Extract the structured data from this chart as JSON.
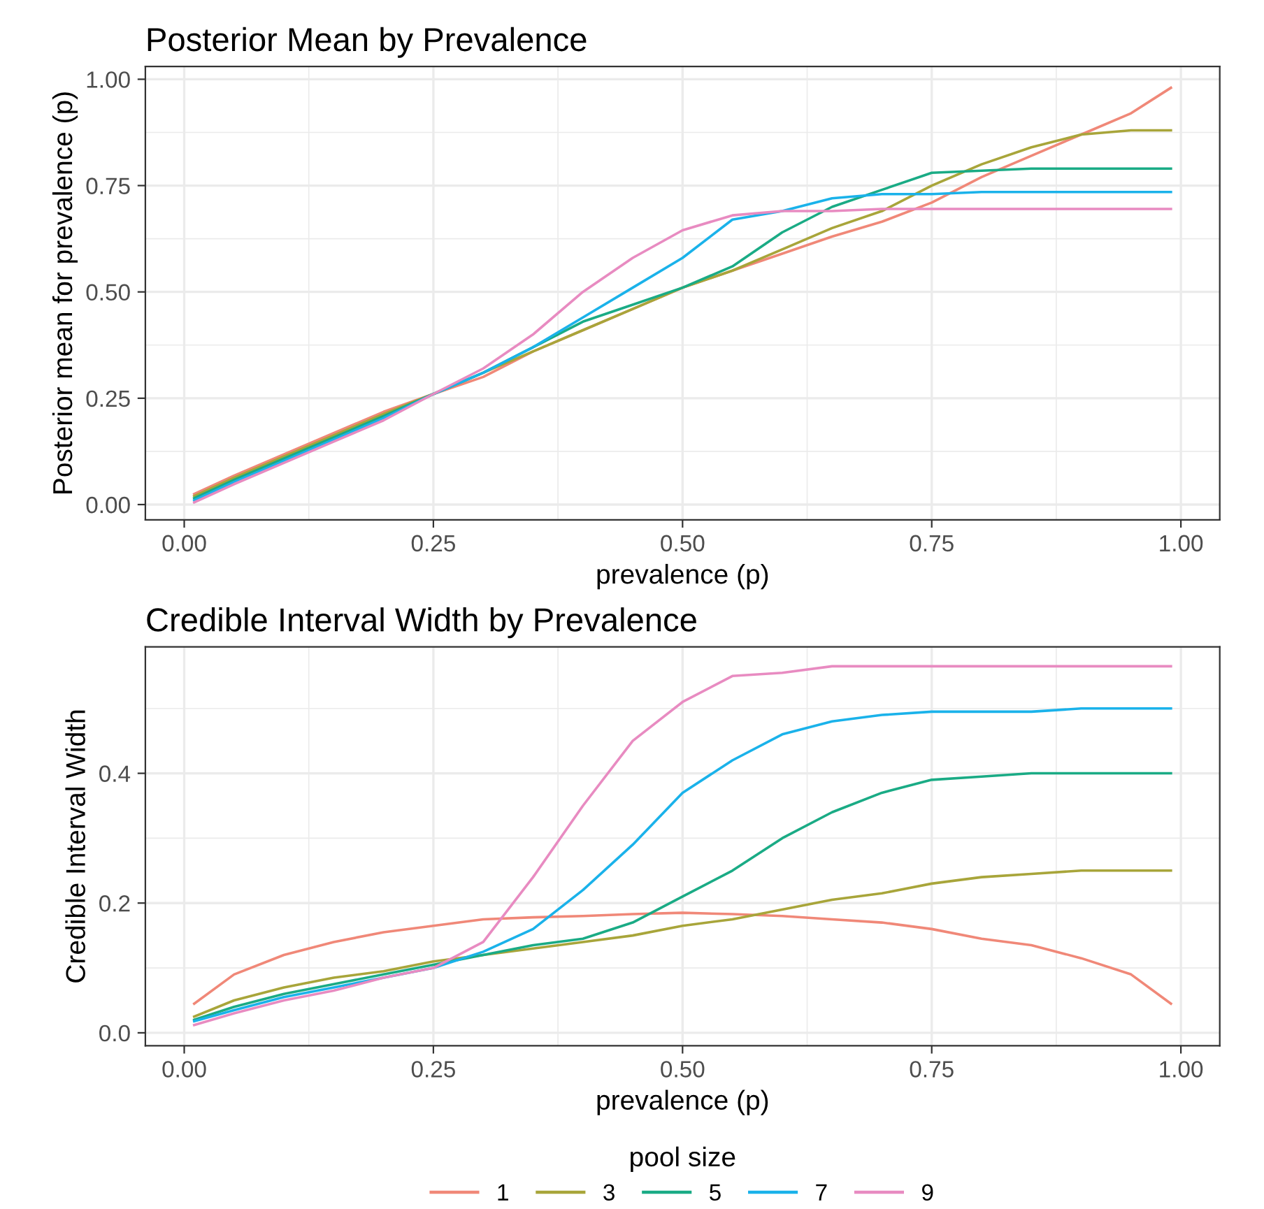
{
  "chart_data": [
    {
      "type": "line",
      "title": "Posterior Mean by Prevalence",
      "xlabel": "prevalence (p)",
      "ylabel": "Posterior mean for prevalence (p)",
      "x": [
        0.01,
        0.05,
        0.1,
        0.15,
        0.2,
        0.25,
        0.3,
        0.35,
        0.4,
        0.45,
        0.5,
        0.55,
        0.6,
        0.65,
        0.7,
        0.75,
        0.8,
        0.85,
        0.9,
        0.95,
        0.99
      ],
      "series": [
        {
          "color": "#F08878",
          "values": [
            0.025,
            0.068,
            0.118,
            0.168,
            0.218,
            0.26,
            0.3,
            0.36,
            0.41,
            0.46,
            0.51,
            0.55,
            0.59,
            0.63,
            0.665,
            0.71,
            0.77,
            0.82,
            0.87,
            0.92,
            0.98
          ]
        },
        {
          "color": "#A8A53A",
          "values": [
            0.02,
            0.063,
            0.113,
            0.163,
            0.213,
            0.26,
            0.31,
            0.36,
            0.41,
            0.46,
            0.51,
            0.55,
            0.6,
            0.65,
            0.69,
            0.75,
            0.8,
            0.84,
            0.87,
            0.88,
            0.88
          ]
        },
        {
          "color": "#1AAB85",
          "values": [
            0.015,
            0.058,
            0.108,
            0.158,
            0.208,
            0.26,
            0.31,
            0.37,
            0.43,
            0.47,
            0.51,
            0.56,
            0.64,
            0.7,
            0.74,
            0.78,
            0.785,
            0.79,
            0.79,
            0.79,
            0.79
          ]
        },
        {
          "color": "#1AB2EA",
          "values": [
            0.01,
            0.053,
            0.103,
            0.153,
            0.203,
            0.26,
            0.31,
            0.37,
            0.44,
            0.51,
            0.58,
            0.67,
            0.69,
            0.72,
            0.73,
            0.73,
            0.735,
            0.735,
            0.735,
            0.735,
            0.735
          ]
        },
        {
          "color": "#E88BC1",
          "values": [
            0.005,
            0.048,
            0.098,
            0.148,
            0.198,
            0.26,
            0.32,
            0.4,
            0.5,
            0.58,
            0.645,
            0.68,
            0.69,
            0.69,
            0.695,
            0.695,
            0.695,
            0.695,
            0.695,
            0.695,
            0.695
          ]
        }
      ],
      "xlim": [
        -0.039,
        1.039
      ],
      "ylim": [
        -0.036,
        1.03
      ],
      "xticks": [
        {
          "value": 0,
          "label": "0.00"
        },
        {
          "value": 0.25,
          "label": "0.25"
        },
        {
          "value": 0.5,
          "label": "0.50"
        },
        {
          "value": 0.75,
          "label": "0.75"
        },
        {
          "value": 1,
          "label": "1.00"
        }
      ],
      "yticks": [
        {
          "value": 0,
          "label": "0.00"
        },
        {
          "value": 0.25,
          "label": "0.25"
        },
        {
          "value": 0.5,
          "label": "0.50"
        },
        {
          "value": 0.75,
          "label": "0.75"
        },
        {
          "value": 1,
          "label": "1.00"
        }
      ],
      "grid": true,
      "legend": false
    },
    {
      "type": "line",
      "title": "Credible Interval Width by Prevalence",
      "xlabel": "prevalence (p)",
      "ylabel": "Credible Interval Width",
      "legend_title": "pool size",
      "x": [
        0.01,
        0.05,
        0.1,
        0.15,
        0.2,
        0.25,
        0.3,
        0.35,
        0.4,
        0.45,
        0.5,
        0.55,
        0.6,
        0.65,
        0.7,
        0.75,
        0.8,
        0.85,
        0.9,
        0.95,
        0.99
      ],
      "series": [
        {
          "name": "1",
          "color": "#F08878",
          "values": [
            0.045,
            0.09,
            0.12,
            0.14,
            0.155,
            0.165,
            0.175,
            0.178,
            0.18,
            0.183,
            0.185,
            0.183,
            0.18,
            0.175,
            0.17,
            0.16,
            0.145,
            0.135,
            0.115,
            0.09,
            0.045
          ]
        },
        {
          "name": "3",
          "color": "#A8A53A",
          "values": [
            0.025,
            0.05,
            0.07,
            0.085,
            0.095,
            0.11,
            0.12,
            0.13,
            0.14,
            0.15,
            0.165,
            0.175,
            0.19,
            0.205,
            0.215,
            0.23,
            0.24,
            0.245,
            0.25,
            0.25,
            0.25
          ]
        },
        {
          "name": "5",
          "color": "#1AAB85",
          "values": [
            0.02,
            0.04,
            0.06,
            0.075,
            0.09,
            0.105,
            0.12,
            0.135,
            0.145,
            0.17,
            0.21,
            0.25,
            0.3,
            0.34,
            0.37,
            0.39,
            0.395,
            0.4,
            0.4,
            0.4,
            0.4
          ]
        },
        {
          "name": "7",
          "color": "#1AB2EA",
          "values": [
            0.018,
            0.035,
            0.055,
            0.07,
            0.085,
            0.1,
            0.125,
            0.16,
            0.22,
            0.29,
            0.37,
            0.42,
            0.46,
            0.48,
            0.49,
            0.495,
            0.495,
            0.495,
            0.5,
            0.5,
            0.5
          ]
        },
        {
          "name": "9",
          "color": "#E88BC1",
          "values": [
            0.012,
            0.03,
            0.05,
            0.065,
            0.085,
            0.1,
            0.14,
            0.24,
            0.35,
            0.45,
            0.51,
            0.55,
            0.555,
            0.565,
            0.565,
            0.565,
            0.565,
            0.565,
            0.565,
            0.565,
            0.565
          ]
        }
      ],
      "xlim": [
        -0.039,
        1.039
      ],
      "ylim": [
        -0.02,
        0.595
      ],
      "xticks": [
        {
          "value": 0,
          "label": "0.00"
        },
        {
          "value": 0.25,
          "label": "0.25"
        },
        {
          "value": 0.5,
          "label": "0.50"
        },
        {
          "value": 0.75,
          "label": "0.75"
        },
        {
          "value": 1,
          "label": "1.00"
        }
      ],
      "yticks": [
        {
          "value": 0,
          "label": "0.0"
        },
        {
          "value": 0.2,
          "label": "0.2"
        },
        {
          "value": 0.4,
          "label": "0.4"
        }
      ],
      "grid": true,
      "legend": "bottom"
    }
  ]
}
